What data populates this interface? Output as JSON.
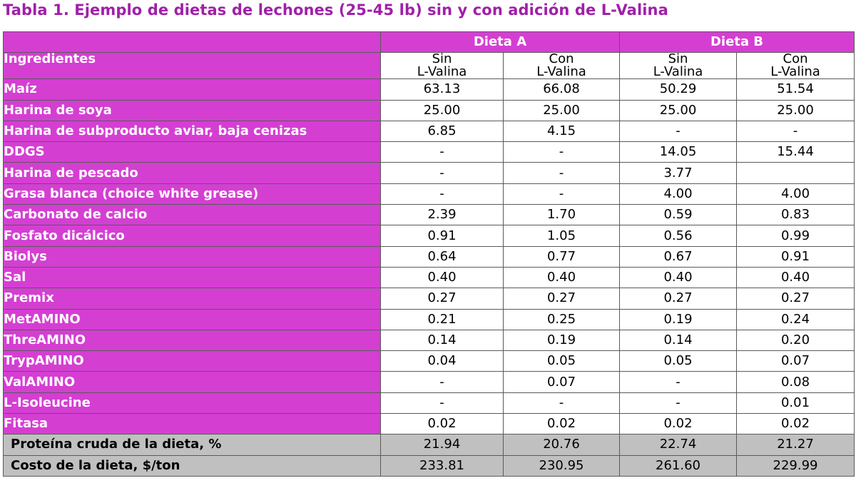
{
  "title": "Tabla 1. Ejemplo de dietas de lechones (25-45 lb) sin y con adición de L-Valina",
  "groups": [
    "Dieta A",
    "Dieta B"
  ],
  "ingredients_header": "Ingredientes",
  "subheaders": [
    {
      "line1": "Sin",
      "line2": "L-Valina"
    },
    {
      "line1": "Con",
      "line2": "L-Valina"
    },
    {
      "line1": "Sin",
      "line2": "L-Valina"
    },
    {
      "line1": "Con",
      "line2": "L-Valina"
    }
  ],
  "rows": [
    {
      "label": "Maíz",
      "values": [
        "63.13",
        "66.08",
        "50.29",
        "51.54"
      ]
    },
    {
      "label": "Harina de soya",
      "values": [
        "25.00",
        "25.00",
        "25.00",
        "25.00"
      ]
    },
    {
      "label": "Harina de subproducto aviar, baja cenizas",
      "values": [
        "6.85",
        "4.15",
        "-",
        "-"
      ]
    },
    {
      "label": "DDGS",
      "values": [
        "-",
        "-",
        "14.05",
        "15.44"
      ]
    },
    {
      "label": "Harina de pescado",
      "values": [
        "-",
        "-",
        "3.77",
        ""
      ]
    },
    {
      "label": "Grasa blanca (choice white grease)",
      "values": [
        "-",
        "-",
        "4.00",
        "4.00"
      ]
    },
    {
      "label": "Carbonato de calcio",
      "values": [
        "2.39",
        "1.70",
        "0.59",
        "0.83"
      ]
    },
    {
      "label": "Fosfato dicálcico",
      "values": [
        "0.91",
        "1.05",
        "0.56",
        "0.99"
      ]
    },
    {
      "label": "Biolys",
      "values": [
        "0.64",
        "0.77",
        "0.67",
        "0.91"
      ]
    },
    {
      "label": "Sal",
      "values": [
        "0.40",
        "0.40",
        "0.40",
        "0.40"
      ]
    },
    {
      "label": "Premix",
      "values": [
        "0.27",
        "0.27",
        "0.27",
        "0.27"
      ]
    },
    {
      "label": "MetAMINO",
      "values": [
        "0.21",
        "0.25",
        "0.19",
        "0.24"
      ]
    },
    {
      "label": "ThreAMINO",
      "values": [
        "0.14",
        "0.19",
        "0.14",
        "0.20"
      ]
    },
    {
      "label": "TrypAMINO",
      "values": [
        "0.04",
        "0.05",
        "0.05",
        "0.07"
      ]
    },
    {
      "label": "ValAMINO",
      "values": [
        "-",
        "0.07",
        "-",
        "0.08"
      ]
    },
    {
      "label": "L-Isoleucine",
      "values": [
        "-",
        "-",
        "-",
        "0.01"
      ]
    },
    {
      "label": "Fitasa",
      "values": [
        "0.02",
        "0.02",
        "0.02",
        "0.02"
      ]
    }
  ],
  "summary_rows": [
    {
      "label": "Proteína cruda de la dieta, %",
      "values": [
        "21.94",
        "20.76",
        "22.74",
        "21.27"
      ]
    },
    {
      "label": "Costo de la dieta, $/ton",
      "values": [
        "233.81",
        "230.95",
        "261.60",
        "229.99"
      ]
    }
  ],
  "colors": {
    "title": "#a020a8",
    "header_fill": "#d43fd2",
    "summary_fill": "#c0c0c0"
  }
}
